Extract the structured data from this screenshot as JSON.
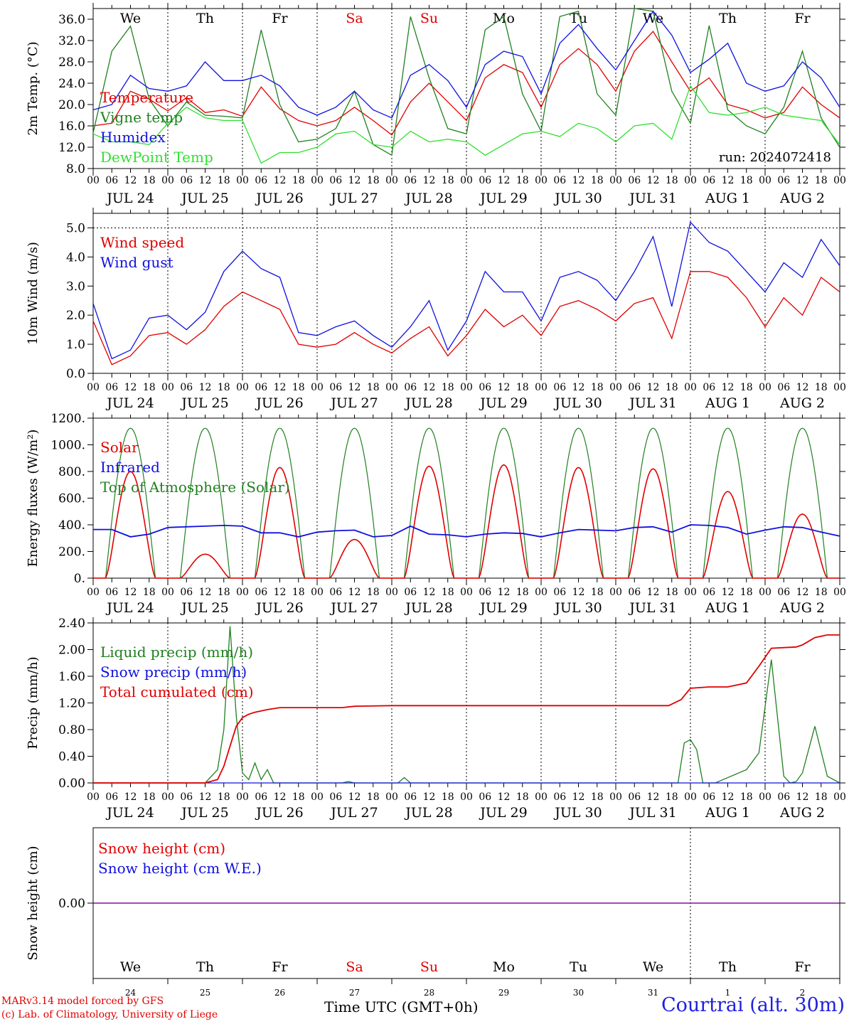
{
  "footer": {
    "credit_line1": "MARv3.14 model forced by GFS",
    "credit_line2": "(c) Lab. of Climatology, University of Liege",
    "time_label": "Time UTC (GMT+0h)",
    "location": "Courtrai (alt. 30m)"
  },
  "colors": {
    "red": "#e00000",
    "green": "#208020",
    "blue": "#1010e0",
    "lightgreen": "#30e030",
    "purple": "#8000a0"
  },
  "chart_data": [
    {
      "type": "line",
      "id": "temperature",
      "ylabel": "2m Temp. (°C)",
      "ylim": [
        8,
        38
      ],
      "yticks": [
        "8.0",
        "12.0",
        "16.0",
        "20.0",
        "24.0",
        "28.0",
        "32.0",
        "36.0"
      ],
      "ytick_values": [
        8,
        12,
        16,
        20,
        24,
        28,
        32,
        36
      ],
      "annotation": "run: 2024072418",
      "day_names": [
        "We",
        "Th",
        "Fr",
        "Sa",
        "Su",
        "Mo",
        "Tu",
        "We",
        "Th",
        "Fr"
      ],
      "weekend_days": [
        "Sa",
        "Su"
      ],
      "date_labels": [
        "JUL 24",
        "JUL 25",
        "JUL 26",
        "JUL 27",
        "JUL 28",
        "JUL 29",
        "JUL 30",
        "JUL 31",
        "AUG  1",
        "AUG  2"
      ],
      "x_hours": [
        0,
        6,
        12,
        18,
        24,
        30,
        36,
        42,
        48,
        54,
        60,
        66,
        72,
        78,
        84,
        90,
        96,
        102,
        108,
        114,
        120,
        126,
        132,
        138,
        144,
        150,
        156,
        162,
        168,
        174,
        180,
        186,
        192,
        198,
        204,
        210,
        216,
        222,
        228,
        234,
        240
      ],
      "series": [
        {
          "name": "Temperature",
          "color": "red",
          "values": [
            16.0,
            16.5,
            22.5,
            21.0,
            18.8,
            21.3,
            18.5,
            19.0,
            17.8,
            23.3,
            19.2,
            17.0,
            16.0,
            17.0,
            19.5,
            17.0,
            14.3,
            20.5,
            24.0,
            20.5,
            17.0,
            25.0,
            27.5,
            26.0,
            19.5,
            27.5,
            30.5,
            27.5,
            22.5,
            30.0,
            33.7,
            28.0,
            22.5,
            25.0,
            20.0,
            19.0,
            17.5,
            18.5,
            23.3,
            20.0,
            17.5
          ]
        },
        {
          "name": "Vigne temp",
          "color": "green",
          "values": [
            14.7,
            30.0,
            34.7,
            21.0,
            16.0,
            20.5,
            18.0,
            17.8,
            17.5,
            34.0,
            20.0,
            13.0,
            13.5,
            15.5,
            22.5,
            12.5,
            10.5,
            36.5,
            25.0,
            15.5,
            14.5,
            34.0,
            36.5,
            22.0,
            15.0,
            36.5,
            37.5,
            22.0,
            18.0,
            38.0,
            37.5,
            22.5,
            16.5,
            34.8,
            19.0,
            16.0,
            14.5,
            19.5,
            30.0,
            17.5,
            12.0
          ]
        },
        {
          "name": "Humidex",
          "color": "blue",
          "values": [
            19.0,
            20.0,
            25.5,
            23.0,
            22.5,
            23.5,
            28.0,
            24.5,
            24.5,
            25.5,
            23.5,
            19.5,
            18.0,
            19.5,
            22.5,
            19.0,
            17.5,
            25.5,
            27.5,
            24.5,
            19.5,
            27.5,
            30.0,
            29.0,
            22.0,
            31.5,
            35.0,
            30.5,
            26.5,
            32.0,
            37.5,
            33.0,
            26.0,
            28.5,
            31.5,
            24.0,
            22.5,
            23.5,
            28.0,
            25.0,
            19.5
          ]
        },
        {
          "name": "DewPoint Temp",
          "color": "lightgreen",
          "values": [
            14.5,
            13.0,
            13.0,
            12.5,
            16.5,
            19.5,
            17.5,
            17.0,
            17.0,
            9.0,
            11.0,
            11.0,
            12.0,
            14.5,
            15.0,
            12.5,
            12.0,
            15.0,
            13.0,
            13.5,
            13.0,
            10.5,
            12.5,
            14.5,
            15.0,
            14.0,
            16.5,
            15.5,
            13.0,
            16.0,
            16.5,
            13.5,
            23.5,
            18.5,
            18.0,
            18.5,
            19.5,
            18.0,
            17.5,
            17.0,
            12.5
          ]
        }
      ]
    },
    {
      "type": "line",
      "id": "wind",
      "ylabel": "10m Wind (m/s)",
      "ylim": [
        0,
        5.5
      ],
      "yticks": [
        "0.0",
        "1.0",
        "2.0",
        "3.0",
        "4.0",
        "5.0"
      ],
      "ytick_values": [
        0,
        1,
        2,
        3,
        4,
        5
      ],
      "hline": 5.0,
      "date_labels": [
        "JUL 24",
        "JUL 25",
        "JUL 26",
        "JUL 27",
        "JUL 28",
        "JUL 29",
        "JUL 30",
        "JUL 31",
        "AUG  1",
        "AUG  2"
      ],
      "x_hours": [
        0,
        6,
        12,
        18,
        24,
        30,
        36,
        42,
        48,
        54,
        60,
        66,
        72,
        78,
        84,
        90,
        96,
        102,
        108,
        114,
        120,
        126,
        132,
        138,
        144,
        150,
        156,
        162,
        168,
        174,
        180,
        186,
        192,
        198,
        204,
        210,
        216,
        222,
        228,
        234,
        240
      ],
      "series": [
        {
          "name": "Wind speed",
          "color": "red",
          "values": [
            1.8,
            0.3,
            0.6,
            1.3,
            1.4,
            1.0,
            1.5,
            2.3,
            2.8,
            2.5,
            2.2,
            1.0,
            0.9,
            1.0,
            1.4,
            1.0,
            0.7,
            1.2,
            1.6,
            0.6,
            1.3,
            2.2,
            1.6,
            2.0,
            1.3,
            2.3,
            2.5,
            2.2,
            1.8,
            2.4,
            2.6,
            1.2,
            3.5,
            3.5,
            3.3,
            2.6,
            1.6,
            2.6,
            2.0,
            3.3,
            2.8
          ]
        },
        {
          "name": "Wind gust",
          "color": "blue",
          "values": [
            2.4,
            0.5,
            0.8,
            1.9,
            2.0,
            1.5,
            2.1,
            3.5,
            4.2,
            3.6,
            3.3,
            1.4,
            1.3,
            1.6,
            1.8,
            1.3,
            0.9,
            1.6,
            2.5,
            0.8,
            1.8,
            3.5,
            2.8,
            2.8,
            1.8,
            3.3,
            3.5,
            3.2,
            2.5,
            3.5,
            4.7,
            2.3,
            5.2,
            4.5,
            4.2,
            3.5,
            2.8,
            3.8,
            3.3,
            4.6,
            3.7
          ]
        }
      ]
    },
    {
      "type": "line",
      "id": "energy",
      "ylabel": "Energy fluxes (W/m²)",
      "ylim": [
        0,
        1200
      ],
      "yticks": [
        "0.",
        "200.",
        "400.",
        "600.",
        "800.",
        "1000.",
        "1200."
      ],
      "ytick_values": [
        0,
        200,
        400,
        600,
        800,
        1000,
        1200
      ],
      "date_labels": [
        "JUL 24",
        "JUL 25",
        "JUL 26",
        "JUL 27",
        "JUL 28",
        "JUL 29",
        "JUL 30",
        "JUL 31",
        "AUG  1",
        "AUG  2"
      ],
      "toa_peak": 1125,
      "solar_peaks": [
        800,
        180,
        830,
        290,
        840,
        850,
        830,
        820,
        650,
        480
      ],
      "infrared": {
        "x_hours": [
          0,
          6,
          12,
          18,
          24,
          30,
          36,
          42,
          48,
          54,
          60,
          66,
          72,
          78,
          84,
          90,
          96,
          102,
          108,
          114,
          120,
          126,
          132,
          138,
          144,
          150,
          156,
          162,
          168,
          174,
          180,
          186,
          192,
          198,
          204,
          210,
          216,
          222,
          228,
          234,
          240
        ],
        "values": [
          365,
          365,
          310,
          330,
          380,
          385,
          390,
          395,
          390,
          340,
          340,
          310,
          345,
          355,
          360,
          310,
          320,
          390,
          330,
          325,
          310,
          330,
          340,
          335,
          310,
          340,
          365,
          360,
          355,
          380,
          385,
          345,
          400,
          395,
          380,
          330,
          360,
          385,
          380,
          345,
          315
        ]
      },
      "series": [
        {
          "name": "Solar",
          "color": "red"
        },
        {
          "name": "Infrared",
          "color": "blue"
        },
        {
          "name": "Top of Atmosphere (Solar)",
          "color": "green"
        }
      ]
    },
    {
      "type": "line",
      "id": "precip",
      "ylabel": "Precip (mm/h)",
      "ylim": [
        0,
        2.4
      ],
      "yticks": [
        "0.00",
        "0.40",
        "0.80",
        "1.20",
        "1.60",
        "2.00",
        "2.40"
      ],
      "ytick_values": [
        0,
        0.4,
        0.8,
        1.2,
        1.6,
        2.0,
        2.4
      ],
      "date_labels": [
        "JUL 24",
        "JUL 25",
        "JUL 26",
        "JUL 27",
        "JUL 28",
        "JUL 29",
        "JUL 30",
        "JUL 31",
        "AUG  1",
        "AUG  2"
      ],
      "series": [
        {
          "name": "Liquid precip (mm/h)",
          "color": "green",
          "x_hours": [
            0,
            36,
            40,
            42,
            44,
            46,
            48,
            50,
            52,
            54,
            56,
            58,
            60,
            66,
            80,
            82,
            84,
            98,
            100,
            102,
            104,
            188,
            190,
            192,
            194,
            196,
            198,
            200,
            210,
            214,
            218,
            222,
            224,
            226,
            228,
            232,
            236,
            240
          ],
          "values": [
            0,
            0,
            0.2,
            0.8,
            2.35,
            1.0,
            0.15,
            0.05,
            0.3,
            0.05,
            0.2,
            0,
            0,
            0,
            0,
            0.02,
            0,
            0,
            0.08,
            0,
            0,
            0,
            0.6,
            0.65,
            0.5,
            0,
            0,
            0,
            0.2,
            0.45,
            1.85,
            0.1,
            0,
            0.02,
            0.15,
            0.85,
            0.1,
            0
          ]
        },
        {
          "name": "Snow precip (mm/h)",
          "color": "blue",
          "x_hours": [
            0,
            240
          ],
          "values": [
            0,
            0
          ]
        },
        {
          "name": "Total cumulated (cm)",
          "color": "red",
          "x_hours": [
            0,
            36,
            40,
            42,
            44,
            46,
            48,
            50,
            52,
            56,
            60,
            70,
            80,
            84,
            96,
            110,
            130,
            150,
            170,
            185,
            189,
            192,
            198,
            204,
            210,
            214,
            218,
            226,
            228,
            232,
            236,
            240
          ],
          "values": [
            0,
            0,
            0.05,
            0.25,
            0.55,
            0.85,
            0.98,
            1.03,
            1.06,
            1.1,
            1.13,
            1.13,
            1.13,
            1.15,
            1.16,
            1.16,
            1.16,
            1.16,
            1.16,
            1.16,
            1.25,
            1.42,
            1.44,
            1.44,
            1.5,
            1.75,
            2.02,
            2.04,
            2.07,
            2.18,
            2.22,
            2.22
          ]
        }
      ]
    },
    {
      "type": "line",
      "id": "snow",
      "ylabel": "Snow height (cm)",
      "ylim": [
        -1,
        1
      ],
      "yticks": [
        "0.00"
      ],
      "ytick_values": [
        0
      ],
      "day_names": [
        "We",
        "Th",
        "Fr",
        "Sa",
        "Su",
        "Mo",
        "Tu",
        "We",
        "Th",
        "Fr"
      ],
      "weekend_days": [
        "Sa",
        "Su"
      ],
      "day_numbers": [
        "24",
        "25",
        "26",
        "27",
        "28",
        "29",
        "30",
        "31",
        "1",
        "2"
      ],
      "series": [
        {
          "name": "Snow height (cm)",
          "color": "red",
          "x_hours": [
            0,
            240
          ],
          "values": [
            0,
            0
          ]
        },
        {
          "name": "Snow height (cm W.E.)",
          "color": "blue",
          "x_hours": [
            0,
            240
          ],
          "values": [
            0,
            0
          ]
        }
      ]
    }
  ]
}
